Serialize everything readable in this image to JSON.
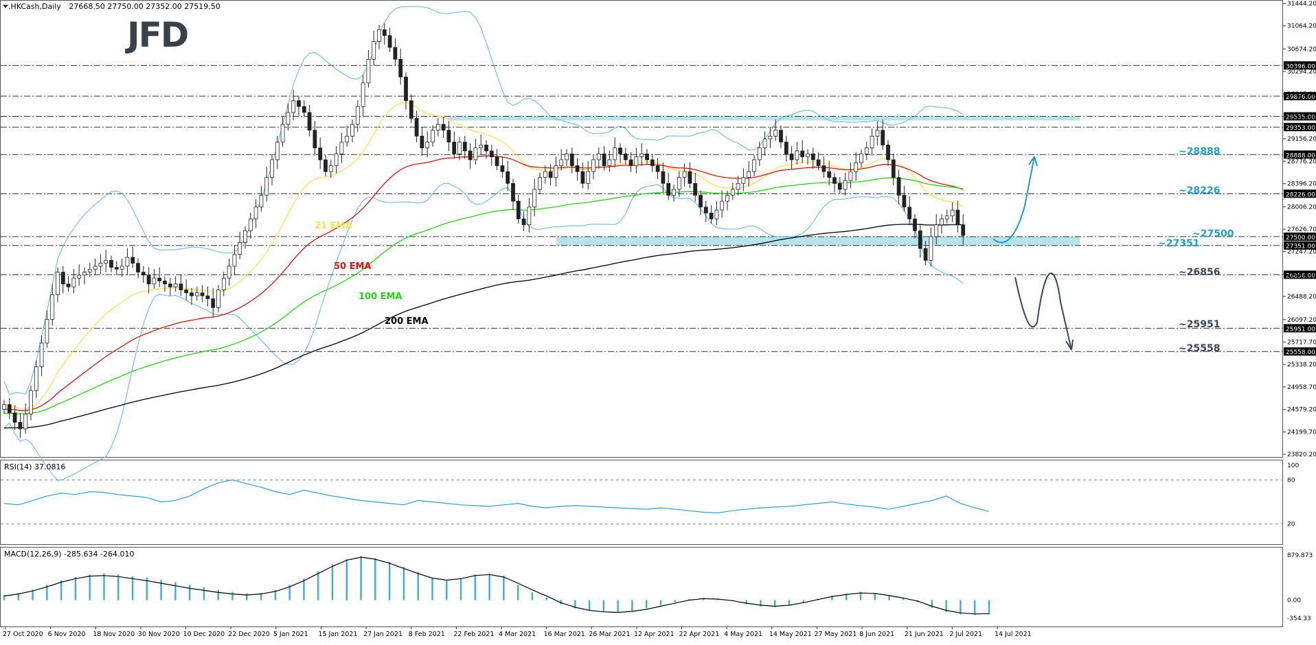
{
  "chart": {
    "symbol": ".HKCash,Daily",
    "ohlc": "27668.50 27750.00 27352.00 27519.50",
    "logo": "JFD",
    "rsi_label": "RSI(14) 37.0816",
    "macd_label": "MACD(12,26,9) -285.634 -264.010"
  },
  "colors": {
    "bull": "#ffffff",
    "bear": "#222222",
    "ema21": "#ffe14d",
    "ema50": "#e8120c",
    "ema100": "#24d614",
    "ema200": "#000000",
    "bollinger": "#5ab8e6",
    "rsi": "#2e9fd6",
    "macd_hist": "#38aed6",
    "zone": "#a9dfe8",
    "forecast_up": "#1a9ed4",
    "forecast_down": "#3b4754"
  },
  "chart_data": {
    "type": "candlestick",
    "title": ".HKCash,Daily",
    "x_tick_labels": [
      "27 Oct 2020",
      "6 Nov 2020",
      "18 Nov 2020",
      "30 Nov 2020",
      "10 Dec 2020",
      "22 Dec 2020",
      "5 Jan 2021",
      "15 Jan 2021",
      "27 Jan 2021",
      "8 Feb 2021",
      "22 Feb 2021",
      "4 Mar 2021",
      "16 Mar 2021",
      "26 Mar 2021",
      "12 Apr 2021",
      "22 Apr 2021",
      "4 May 2021",
      "14 May 2021",
      "27 May 2021",
      "8 Jun 2021",
      "21 Jun 2021",
      "2 Jul 2021",
      "14 Jul 2021"
    ],
    "y_tick_labels": [
      "31444.20",
      "31064.20",
      "30674.20",
      "30294.20",
      "29915.20",
      "29535.20",
      "29156.20",
      "28776.20",
      "28396.20",
      "28006.20",
      "27626.70",
      "27247.20",
      "26867.20",
      "26488.20",
      "26097.20",
      "25717.70",
      "25338.20",
      "24958.70",
      "24579.20",
      "24199.70",
      "23820.20"
    ],
    "ylim": [
      23820.2,
      31444.2
    ],
    "levels": [
      {
        "value": 30396.0,
        "label": "30396.00"
      },
      {
        "value": 29876.0,
        "label": "29876.00"
      },
      {
        "value": 29535.0,
        "label": "29535.00"
      },
      {
        "value": 29353.0,
        "label": "29353.00"
      },
      {
        "value": 28888.0,
        "label": "28888.00"
      },
      {
        "value": 28226.0,
        "label": "28226.00"
      },
      {
        "value": 27500.0,
        "label": "27500.00"
      },
      {
        "value": 27351.0,
        "label": "27351.00"
      },
      {
        "value": 26856.0,
        "label": "26856.00"
      },
      {
        "value": 25951.0,
        "label": "25951.00"
      },
      {
        "value": 25558.0,
        "label": "25558.00"
      }
    ],
    "level_annotations": [
      "~28888",
      "~28226",
      "~27500",
      "~27351",
      "~26856",
      "~25951",
      "~25558"
    ],
    "zones": [
      [
        29470,
        29535
      ],
      [
        27351,
        27500
      ]
    ],
    "ma_labels": [
      "21 EMA",
      "50 EMA",
      "100 EMA",
      "200 EMA"
    ],
    "ohlc_close_path": [
      24660,
      24520,
      24360,
      24250,
      24500,
      24900,
      25300,
      25700,
      26100,
      26520,
      26900,
      26700,
      26650,
      26800,
      26850,
      26900,
      26950,
      27000,
      27050,
      27100,
      26980,
      26950,
      27000,
      27150,
      27050,
      26900,
      26850,
      26700,
      26800,
      26750,
      26700,
      26650,
      26700,
      26600,
      26550,
      26500,
      26550,
      26500,
      26450,
      26300,
      26600,
      26800,
      27000,
      27200,
      27400,
      27600,
      27800,
      28000,
      28200,
      28500,
      28800,
      29100,
      29400,
      29600,
      29800,
      29700,
      29600,
      29300,
      29000,
      28800,
      28600,
      28700,
      28900,
      29100,
      29200,
      29400,
      29700,
      30100,
      30500,
      30800,
      31000,
      30900,
      30700,
      30500,
      30200,
      29800,
      29500,
      29200,
      29000,
      29100,
      29300,
      29400,
      29300,
      29100,
      28900,
      29100,
      28950,
      28800,
      29000,
      29050,
      28950,
      28850,
      28700,
      28600,
      28400,
      28100,
      27800,
      27700,
      28000,
      28300,
      28500,
      28600,
      28500,
      28700,
      28800,
      28900,
      28700,
      28600,
      28400,
      28600,
      28800,
      28900,
      28700,
      28800,
      29000,
      28900,
      28800,
      28700,
      28850,
      28900,
      28800,
      28700,
      28600,
      28400,
      28200,
      28300,
      28500,
      28600,
      28400,
      28200,
      28000,
      27900,
      27800,
      27950,
      28100,
      28200,
      28300,
      28400,
      28500,
      28600,
      28800,
      29000,
      29150,
      29200,
      29300,
      29100,
      28900,
      28800,
      28950,
      28850,
      28900,
      28800,
      28700,
      28600,
      28500,
      28400,
      28300,
      28450,
      28600,
      28750,
      28900,
      29000,
      29200,
      29300,
      29050,
      28800,
      28500,
      28200,
      28000,
      27800,
      27600,
      27300,
      27100,
      27500,
      27700,
      27800,
      27850,
      27950,
      27700,
      27519.5
    ],
    "rsi": {
      "levels": [
        100,
        80,
        20
      ],
      "values": [
        48,
        46,
        52,
        58,
        62,
        60,
        64,
        63,
        60,
        58,
        56,
        50,
        52,
        58,
        68,
        76,
        80,
        75,
        70,
        64,
        60,
        66,
        62,
        58,
        55,
        52,
        50,
        48,
        46,
        52,
        50,
        48,
        46,
        45,
        44,
        46,
        48,
        44,
        42,
        44,
        45,
        44,
        43,
        42,
        41,
        40,
        42,
        40,
        38,
        36,
        35,
        38,
        40,
        42,
        43,
        44,
        46,
        48,
        50,
        47,
        45,
        43,
        40,
        44,
        48,
        52,
        58,
        48,
        42,
        37
      ]
    },
    "macd": {
      "ticks": [
        "879.873",
        "0.00",
        "-354.33"
      ],
      "hist": [
        100,
        140,
        200,
        300,
        390,
        450,
        500,
        520,
        500,
        470,
        440,
        400,
        350,
        300,
        250,
        200,
        160,
        130,
        140,
        200,
        300,
        420,
        560,
        700,
        800,
        860,
        820,
        750,
        650,
        550,
        440,
        380,
        420,
        500,
        520,
        480,
        300,
        150,
        50,
        -80,
        -160,
        -200,
        -220,
        -230,
        -210,
        -160,
        -100,
        -40,
        20,
        40,
        20,
        -20,
        -80,
        -120,
        -140,
        -100,
        -40,
        30,
        90,
        130,
        160,
        140,
        90,
        30,
        -40,
        -150,
        -230,
        -280,
        -290,
        -280
      ],
      "signal": [
        80,
        120,
        180,
        260,
        350,
        420,
        470,
        480,
        460,
        420,
        380,
        330,
        280,
        230,
        190,
        150,
        120,
        100,
        120,
        170,
        260,
        380,
        520,
        660,
        780,
        840,
        800,
        720,
        620,
        520,
        430,
        390,
        420,
        480,
        500,
        450,
        330,
        200,
        80,
        -50,
        -140,
        -200,
        -230,
        -240,
        -220,
        -180,
        -120,
        -60,
        0,
        30,
        20,
        -10,
        -60,
        -100,
        -120,
        -100,
        -50,
        10,
        70,
        110,
        140,
        130,
        90,
        40,
        -20,
        -120,
        -200,
        -250,
        -270,
        -264
      ]
    }
  }
}
